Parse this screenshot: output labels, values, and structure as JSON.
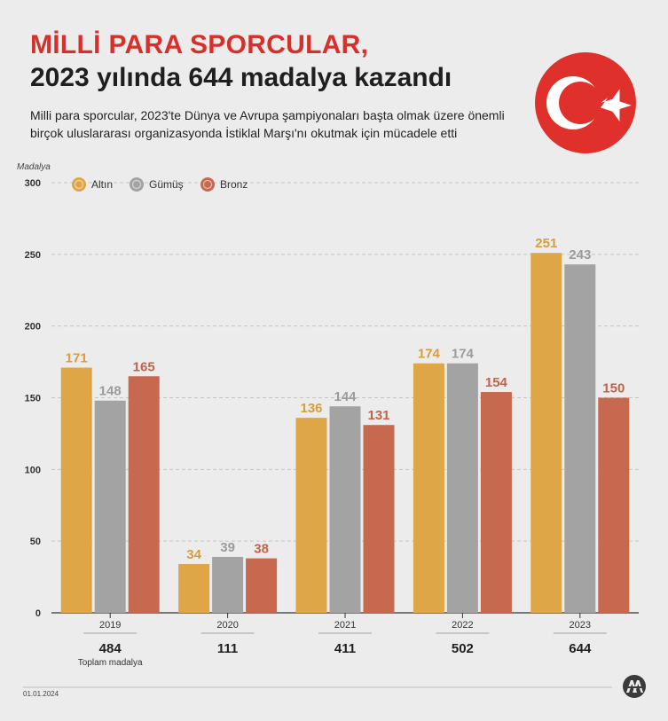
{
  "header": {
    "title_line1": "MİLLİ PARA SPORCULAR,",
    "title_line2": "2023 yılında 644 madalya kazandı",
    "subtitle": "Milli para sporcular, 2023'te Dünya ve Avrupa şampiyonaları başta olmak üzere önemli birçok uluslararası organizasyonda İstiklal Marşı'nı okutmak için mücadele etti"
  },
  "footer": {
    "date": "01.01.2024"
  },
  "colors": {
    "title_red": "#d6302c",
    "flag_red": "#e0302c",
    "gold": "#dfa647",
    "silver": "#a3a3a3",
    "bronze": "#c6694f"
  },
  "icons": {
    "flag": "turkish-flag-icon",
    "logo": "aa-logo-icon"
  },
  "chart_data": {
    "type": "bar",
    "ylabel": "Madalya",
    "ylim": [
      0,
      300
    ],
    "yticks": [
      0,
      50,
      100,
      150,
      200,
      250,
      300
    ],
    "grid": true,
    "legend_position": "top-left",
    "categories": [
      "2019",
      "2020",
      "2021",
      "2022",
      "2023"
    ],
    "series": [
      {
        "name": "Altın",
        "color": "#dfa647",
        "label_color": "#d79d3c",
        "values": [
          171,
          34,
          136,
          174,
          251
        ]
      },
      {
        "name": "Gümüş",
        "color": "#a3a3a3",
        "label_color": "#9b9b9b",
        "values": [
          148,
          39,
          144,
          174,
          243
        ]
      },
      {
        "name": "Bronz",
        "color": "#c6694f",
        "label_color": "#c0634a",
        "values": [
          165,
          38,
          131,
          154,
          150
        ]
      }
    ],
    "totals": [
      484,
      111,
      411,
      502,
      644
    ],
    "totals_label": "Toplam madalya"
  }
}
